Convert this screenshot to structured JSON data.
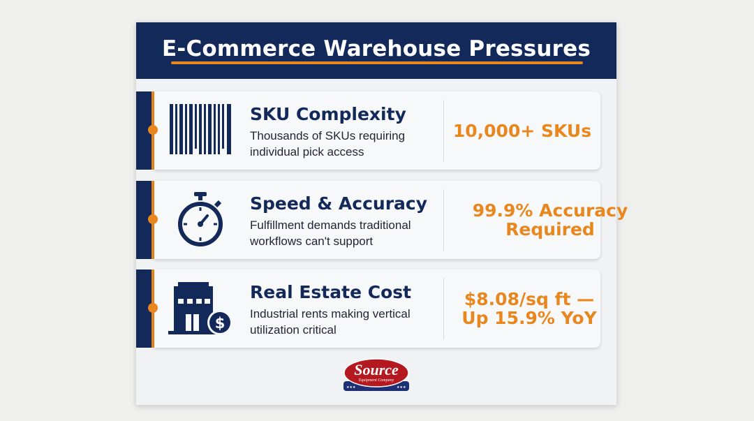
{
  "title": "E-Commerce Warehouse Pressures",
  "rows": [
    {
      "icon": "barcode-icon",
      "title": "SKU Complexity",
      "description": "Thousands of SKUs requiring individual pick access",
      "value": "10,000+ SKUs"
    },
    {
      "icon": "stopwatch-icon",
      "title": "Speed & Accuracy",
      "description": "Fulfillment demands traditional workflows can't support",
      "value": "99.9% Accuracy Required"
    },
    {
      "icon": "building-dollar-icon",
      "title": "Real Estate Cost",
      "description": "Industrial rents making vertical utilization critical",
      "value": "$8.08/sq ft — Up 15.9% YoY"
    }
  ],
  "logo": {
    "name": "Source",
    "subtitle": "Equipment Company"
  },
  "colors": {
    "navy": "#13295a",
    "orange": "#e8871e",
    "logo_red": "#b3191f"
  }
}
